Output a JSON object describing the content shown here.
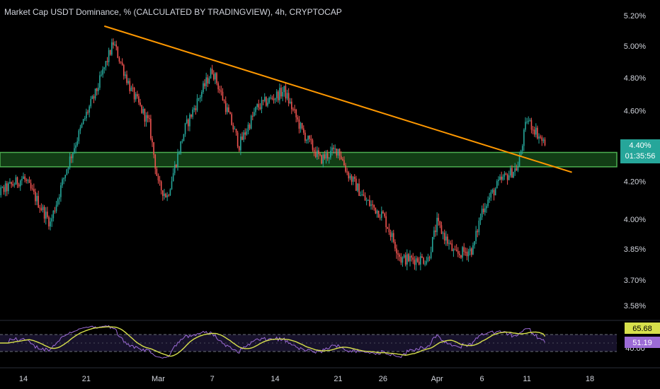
{
  "chart_title": "Market Cap USDT Dominance, % (CALCULATED BY TRADINGVIEW), 4h, CRYPTOCAP",
  "colors": {
    "background": "#000000",
    "up_candle": "#26a69a",
    "down_candle": "#ef5350",
    "trendline": "#ff9800",
    "zone_fill": "#1b5e20",
    "zone_border": "#4caf50",
    "rsi_line": "#9c6bd6",
    "rsi_ma": "#d7e04b",
    "rsi_band": "#1a1430",
    "axis_text": "#d1d4dc",
    "price_badge": "#26a69a",
    "rsi_badge_ma": "#d7e04b",
    "rsi_badge_rsi": "#9c6bd6"
  },
  "price_axis": {
    "ticks": [
      "5.20%",
      "5.00%",
      "4.80%",
      "4.60%",
      "4.40%",
      "4.20%",
      "4.00%",
      "3.85%",
      "3.70%",
      "3.58%"
    ],
    "scale": "log"
  },
  "price_badge": {
    "value": "4.40%",
    "countdown": "01:35:56"
  },
  "rsi_badges": {
    "ma_value": "65.68",
    "rsi_value": "51.19",
    "lower_label": "40.00"
  },
  "time_axis": {
    "labels": [
      "14",
      "21",
      "Mar",
      "7",
      "14",
      "21",
      "26",
      "Apr",
      "6",
      "11",
      "18"
    ]
  },
  "chart_data": {
    "type": "candlestick",
    "title": "Market Cap USDT Dominance, % (CALCULATED BY TRADINGVIEW), 4h, CRYPTOCAP",
    "interval": "4h",
    "y_unit": "%",
    "y_scale": "log",
    "ylim": [
      3.55,
      5.25
    ],
    "approx_close_path": [
      [
        "Feb 10",
        4.1
      ],
      [
        "Feb 14",
        4.22
      ],
      [
        "Feb 17",
        3.98
      ],
      [
        "Feb 19",
        4.3
      ],
      [
        "Feb 21",
        4.58
      ],
      [
        "Feb 22",
        4.7
      ],
      [
        "Feb 24",
        5.02
      ],
      [
        "Feb 26",
        4.72
      ],
      [
        "Feb 28",
        4.52
      ],
      [
        "Mar 1",
        4.18
      ],
      [
        "Mar 2",
        4.12
      ],
      [
        "Mar 4",
        4.5
      ],
      [
        "Mar 7",
        4.85
      ],
      [
        "Mar 9",
        4.55
      ],
      [
        "Mar 10",
        4.4
      ],
      [
        "Mar 12",
        4.62
      ],
      [
        "Mar 15",
        4.72
      ],
      [
        "Mar 17",
        4.48
      ],
      [
        "Mar 19",
        4.32
      ],
      [
        "Mar 21",
        4.38
      ],
      [
        "Mar 22",
        4.25
      ],
      [
        "Mar 24",
        4.1
      ],
      [
        "Mar 26",
        4.02
      ],
      [
        "Mar 28",
        3.8
      ],
      [
        "Mar 31",
        3.8
      ],
      [
        "Apr 1",
        3.98
      ],
      [
        "Apr 3",
        3.82
      ],
      [
        "Apr 5",
        3.85
      ],
      [
        "Apr 6",
        4.05
      ],
      [
        "Apr 8",
        4.2
      ],
      [
        "Apr 10",
        4.28
      ],
      [
        "Apr 11",
        4.55
      ],
      [
        "Apr 12",
        4.48
      ],
      [
        "Apr 13",
        4.4
      ]
    ],
    "last_value": 4.4,
    "trendline": {
      "from": [
        "Feb 23",
        5.13
      ],
      "to": [
        "Apr 16",
        4.25
      ]
    },
    "support_zone": {
      "low": 4.28,
      "high": 4.36
    },
    "rsi": {
      "upper_band": 70,
      "lower_band": 30,
      "ma_last": 65.68,
      "rsi_last": 51.19
    }
  }
}
